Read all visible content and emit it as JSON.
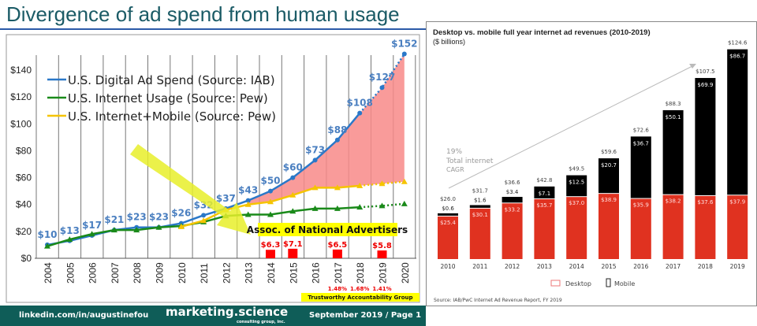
{
  "page": {
    "title": "Divergence of ad spend from human usage",
    "footer": {
      "linkedin": "linkedin.com/in/augustinefou",
      "brand": "marketing.science",
      "brand_sub": "consulting group, inc.",
      "date_page": "September 2019 / Page 1"
    }
  },
  "chart_data": [
    {
      "type": "line",
      "title": "",
      "x": [
        2004,
        2005,
        2006,
        2007,
        2008,
        2009,
        2010,
        2011,
        2012,
        2013,
        2014,
        2015,
        2016,
        2017,
        2018,
        2019,
        2020
      ],
      "y_ticks": [
        "$0",
        "$20",
        "$40",
        "$60",
        "$80",
        "$100",
        "$120",
        "$140"
      ],
      "ylim": [
        0,
        150
      ],
      "grid": "vertical",
      "legend_placement": "top-left",
      "series": [
        {
          "name": "U.S. Digital Ad Spend (Source: IAB)",
          "color": "#2a78c8",
          "values": [
            10,
            13,
            17,
            21,
            23,
            23,
            26,
            32,
            37,
            43,
            50,
            60,
            73,
            88,
            108,
            127,
            152
          ],
          "labels": [
            "$10",
            "$13",
            "$17",
            "$21",
            "$23",
            "$23",
            "$26",
            "$32",
            "$37",
            "$43",
            "$50",
            "$60",
            "$73",
            "$88",
            "$108",
            "$127",
            "$152"
          ],
          "projected_from": 2018
        },
        {
          "name": "U.S. Internet Usage (Source: Pew)",
          "color": "#1a8a1a",
          "values": [
            9,
            14,
            18,
            21,
            21,
            23,
            24,
            27,
            31.5,
            32.5,
            32.5,
            35,
            37,
            37,
            38,
            39,
            40.5
          ],
          "projected_from": 2018
        },
        {
          "name": "U.S. Internet+Mobile (Source: Pew)",
          "color": "#f5c400",
          "values": [
            null,
            null,
            null,
            null,
            null,
            null,
            23.5,
            28,
            36,
            40,
            42,
            47,
            52.5,
            52.5,
            54,
            55.5,
            57
          ],
          "projected_from": 2018
        }
      ],
      "shaded_gap_color": "#f88a88",
      "annotations": {
        "ana_label": "Assoc. of National Advertisers",
        "ana_bars": [
          {
            "x": 2014,
            "value": 6.3,
            "label": "$6.3"
          },
          {
            "x": 2015,
            "value": 7.1,
            "label": "$7.1"
          },
          {
            "x": 2017,
            "value": 6.5,
            "label": "$6.5"
          },
          {
            "x": 2019,
            "value": 5.8,
            "label": "$5.8"
          }
        ],
        "tag_label": "Trustworthy Accountability Group",
        "tag_pcts": [
          {
            "x": 2017,
            "label": "1.48%"
          },
          {
            "x": 2018,
            "label": "1.68%"
          },
          {
            "x": 2019,
            "label": "1.41%"
          }
        ]
      }
    },
    {
      "type": "bar",
      "stacked": true,
      "title": "Desktop vs. mobile full year internet ad revenues (2010-2019)",
      "subtitle": "($ billions)",
      "categories": [
        "2010",
        "2011",
        "2012",
        "2013",
        "2014",
        "2015",
        "2016",
        "2017",
        "2018",
        "2019"
      ],
      "series": [
        {
          "name": "Desktop",
          "color": "#e03220",
          "values": [
            25.4,
            30.1,
            33.2,
            35.7,
            37.0,
            38.9,
            35.9,
            38.2,
            37.6,
            37.9
          ]
        },
        {
          "name": "Mobile",
          "color": "#000000",
          "values": [
            0.6,
            1.6,
            3.4,
            7.1,
            12.5,
            20.7,
            36.7,
            50.1,
            69.9,
            86.7
          ]
        }
      ],
      "desktop_labels": [
        "$25.4",
        "$30.1",
        "$33.2",
        "$35.7",
        "$37.0",
        "$38.9",
        "$35.9",
        "$38.2",
        "$37.6",
        "$37.9"
      ],
      "mobile_labels": [
        "$0.6",
        "$1.6",
        "$3.4",
        "$7.1",
        "$12.5",
        "$20.7",
        "$36.7",
        "$50.1",
        "$69.9",
        "$86.7"
      ],
      "totals": [
        "$26.0",
        "$31.7",
        "$36.6",
        "$42.8",
        "$49.5",
        "$59.6",
        "$72.6",
        "$88.3",
        "$107.5",
        "$124.6"
      ],
      "cagr": {
        "value": "19%",
        "line1": "Total internet",
        "line2": "CAGR"
      },
      "legend_placement": "bottom",
      "source": "Source: IAB/PwC Internet Ad Revenue Report, FY 2019"
    }
  ]
}
